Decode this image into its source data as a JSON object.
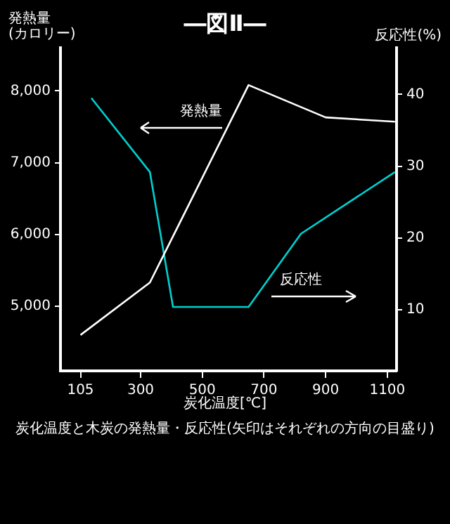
{
  "chart_data": {
    "type": "line",
    "title": "―図Ⅱ―",
    "ylabel": "発熱量\n(カロリー)",
    "y2label": "反応性(%)",
    "xlabel": "炭化温度[℃]",
    "annotations": [
      "発熱量",
      "反応性",
      "炭化温度と木炭の発熱量・反応性(矢印はそれぞれの方向の目盛り)"
    ],
    "series": [
      {
        "color": "#ffffff",
        "x": [
          105,
          330,
          650,
          900,
          1125
        ],
        "values": [
          4600,
          5330,
          8080,
          7630,
          7570
        ]
      },
      {
        "color": "#00d0d0",
        "axis": "y2",
        "x": [
          140,
          330,
          405,
          650,
          820,
          1125
        ],
        "values": [
          39.5,
          29.2,
          10.4,
          10.4,
          20.6,
          29.2
        ]
      }
    ],
    "xlim": [
      40,
      1130
    ],
    "xticks": [
      105,
      300,
      500,
      700,
      900,
      1100
    ],
    "ylim": [
      4100,
      8600
    ],
    "yticks": [
      {
        "value": 5000,
        "label": "5,000"
      },
      {
        "value": 6000,
        "label": "6,000"
      },
      {
        "value": 7000,
        "label": "7,000"
      },
      {
        "value": 8000,
        "label": "8,000"
      }
    ],
    "y2lim": [
      1.5,
      46.5
    ],
    "y2ticks": [
      10,
      20,
      30,
      40
    ],
    "grid": false,
    "legend": false,
    "marker": "none",
    "line_style": "solid"
  }
}
